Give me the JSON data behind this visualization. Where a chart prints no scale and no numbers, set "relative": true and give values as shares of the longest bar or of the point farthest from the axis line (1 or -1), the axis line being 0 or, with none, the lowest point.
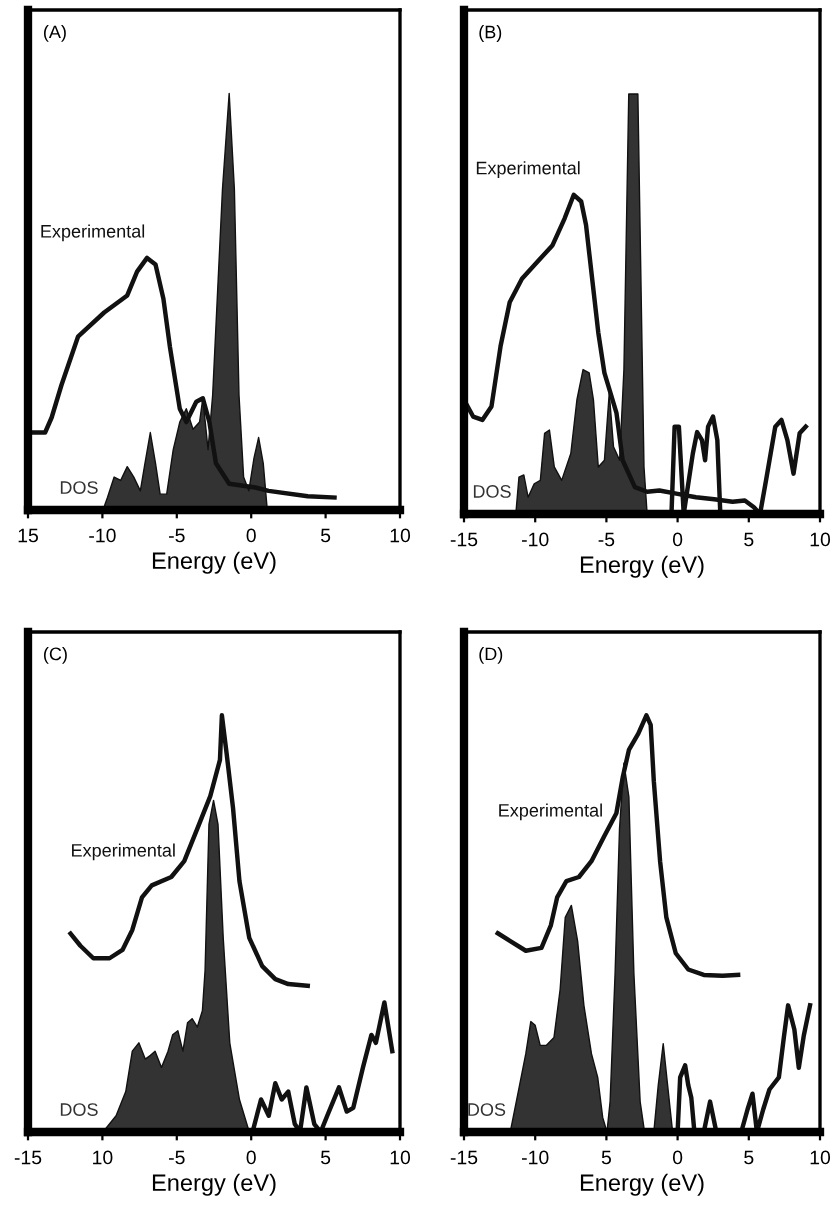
{
  "chart_data": [
    {
      "type": "line",
      "title": "(A)",
      "xlabel": "Energy (eV)",
      "relative": true,
      "tick_labels": "x",
      "xlim": [
        -15,
        10
      ],
      "xticks": [
        {
          "value": -15,
          "label": "15"
        },
        -10,
        -5,
        0,
        5,
        10
      ],
      "series": [
        {
          "name": "Experimental",
          "type": "line",
          "color": "#111111",
          "x": [
            -15,
            -13.85,
            -13.41,
            -12.75,
            -11.64,
            -9.88,
            -8.33,
            -7.67,
            -7.0,
            -6.43,
            -5.9,
            -5.46,
            -4.8,
            -4.36,
            -3.69,
            -3.25,
            -2.81,
            -2.37,
            -1.48,
            0.28,
            1.17,
            3.8,
            5.6
          ],
          "values": [
            0.186,
            0.186,
            0.222,
            0.3,
            0.416,
            0.474,
            0.515,
            0.572,
            0.605,
            0.589,
            0.507,
            0.391,
            0.243,
            0.211,
            0.26,
            0.268,
            0.211,
            0.112,
            0.063,
            0.054,
            0.046,
            0.033,
            0.03
          ]
        },
        {
          "name": "DOS",
          "type": "area",
          "color": "#333333",
          "x": [
            -9.96,
            -9.66,
            -9.21,
            -8.77,
            -8.33,
            -7.89,
            -7.45,
            -7.14,
            -6.78,
            -6.43,
            -6.12,
            -5.68,
            -5.24,
            -4.8,
            -4.36,
            -3.91,
            -3.47,
            -3.25,
            -2.9,
            -2.59,
            -1.93,
            -1.48,
            -1.13,
            -0.82,
            -0.51,
            -0.16,
            0.19,
            0.5,
            0.81,
            1.08
          ],
          "values": [
            0,
            0.03,
            0.079,
            0.071,
            0.104,
            0.079,
            0.046,
            0.112,
            0.186,
            0.112,
            0.038,
            0.038,
            0.145,
            0.211,
            0.243,
            0.194,
            0.211,
            0.268,
            0.145,
            0.276,
            0.77,
            1.0,
            0.77,
            0.276,
            0.079,
            0.046,
            0.125,
            0.174,
            0.112,
            0
          ]
        }
      ]
    },
    {
      "type": "line",
      "title": "(B)",
      "xlabel": "Energy (eV)",
      "relative": true,
      "tick_labels": "x",
      "xlim": [
        -15,
        10
      ],
      "xticks": [
        -15,
        -10,
        -5,
        0,
        5,
        10
      ],
      "series": [
        {
          "name": "Experimental",
          "type": "line",
          "color": "#111111",
          "x": [
            -15,
            -14.36,
            -13.71,
            -13.07,
            -12.43,
            -11.79,
            -10.93,
            -9.86,
            -8.78,
            -7.93,
            -7.29,
            -6.77,
            -6.43,
            -6.0,
            -5.57,
            -5.14,
            -4.71,
            -4.29,
            -3.86,
            -3.0,
            -2.14,
            -1.28,
            0,
            1.29,
            2.57,
            3.86,
            4.72,
            5.36,
            5.79,
            6.21,
            6.86,
            7.29,
            7.71,
            8.14,
            8.57,
            9.0
          ],
          "values": [
            0.272,
            0.232,
            0.224,
            0.256,
            0.4,
            0.504,
            0.56,
            0.6,
            0.64,
            0.704,
            0.76,
            0.744,
            0.688,
            0.56,
            0.432,
            0.336,
            0.288,
            0.24,
            0.128,
            0.064,
            0.053,
            0.056,
            0.048,
            0.04,
            0.035,
            0.029,
            0.032,
            0.016,
            0,
            0.08,
            0.208,
            0.224,
            0.176,
            0.096,
            0.192,
            0.208
          ]
        },
        {
          "name": "DOS",
          "type": "area",
          "color": "#333333",
          "x": [
            -11.36,
            -11.14,
            -10.8,
            -10.5,
            -10.07,
            -9.64,
            -9.34,
            -9.0,
            -8.66,
            -8.14,
            -7.5,
            -7.07,
            -6.64,
            -6.21,
            -5.91,
            -5.57,
            -5.14,
            -4.8,
            -4.5,
            -4.07,
            -3.77,
            -3.43,
            -2.79,
            -2.36,
            -2.14
          ],
          "values": [
            0,
            0.088,
            0.093,
            0.04,
            0.072,
            0.08,
            0.192,
            0.2,
            0.112,
            0.08,
            0.144,
            0.272,
            0.344,
            0.336,
            0.272,
            0.112,
            0.128,
            0.288,
            0.16,
            0.128,
            0.344,
            1.0,
            1.0,
            0.112,
            0
          ]
        },
        {
          "type": "line",
          "color": "#111111",
          "x": [
            -0.43,
            -0.21,
            0.09,
            0.43,
            1.07,
            1.37,
            1.71,
            1.93,
            2.14,
            2.49,
            2.79,
            3.0
          ],
          "values": [
            0,
            0.208,
            0.208,
            0,
            0.144,
            0.195,
            0.176,
            0.128,
            0.208,
            0.232,
            0.176,
            0
          ]
        }
      ]
    },
    {
      "type": "line",
      "title": "(C)",
      "xlabel": "Energy (eV)",
      "relative": true,
      "tick_labels": "x",
      "xlim": [
        -15,
        10
      ],
      "xticks": [
        -15,
        {
          "value": -10,
          "label": "10"
        },
        -5,
        0,
        5,
        10
      ],
      "series": [
        {
          "name": "Experimental",
          "type": "line",
          "color": "#111111",
          "x": [
            -12.14,
            -11.48,
            -10.61,
            -9.52,
            -8.65,
            -7.99,
            -7.34,
            -6.68,
            -5.37,
            -4.5,
            -3.62,
            -2.75,
            -2.1,
            -1.97,
            -1.66,
            -1.22,
            -0.79,
            -0.13,
            0.74,
            1.62,
            2.49,
            3.8
          ],
          "values": [
            0.476,
            0.447,
            0.417,
            0.417,
            0.437,
            0.485,
            0.563,
            0.592,
            0.612,
            0.65,
            0.728,
            0.806,
            0.893,
            1.0,
            0.911,
            0.777,
            0.602,
            0.466,
            0.398,
            0.367,
            0.355,
            0.351
          ]
        },
        {
          "name": "DOS",
          "type": "area",
          "color": "#333333",
          "x": [
            -9.96,
            -9.08,
            -8.43,
            -7.99,
            -7.55,
            -7.12,
            -6.77,
            -6.46,
            -6.03,
            -5.59,
            -5.28,
            -4.93,
            -4.59,
            -4.28,
            -3.97,
            -3.62,
            -3.28,
            -3.1,
            -2.84,
            -2.53,
            -2.23,
            -1.88,
            -1.44,
            -0.79,
            -0.13
          ],
          "values": [
            0,
            0.039,
            0.097,
            0.194,
            0.214,
            0.175,
            0.184,
            0.194,
            0.155,
            0.194,
            0.233,
            0.243,
            0.194,
            0.262,
            0.272,
            0.252,
            0.291,
            0.388,
            0.738,
            0.796,
            0.738,
            0.466,
            0.214,
            0.078,
            0
          ]
        },
        {
          "type": "line",
          "color": "#111111",
          "x": [
            0.09,
            0.66,
            1.18,
            1.62,
            2.05,
            2.49,
            2.93,
            3.28,
            3.71,
            4.24,
            4.67,
            5.11,
            5.9,
            6.42,
            6.86,
            7.51,
            8.08,
            8.38,
            8.95,
            9.48
          ],
          "values": [
            0,
            0.078,
            0.039,
            0.117,
            0.078,
            0.097,
            0.019,
            0,
            0.107,
            0.019,
            0,
            0.039,
            0.107,
            0.049,
            0.058,
            0.155,
            0.233,
            0.214,
            0.311,
            0.194
          ]
        }
      ]
    },
    {
      "type": "line",
      "title": "(D)",
      "xlabel": "Energy (eV)",
      "relative": true,
      "tick_labels": "x",
      "xlim": [
        -15,
        10
      ],
      "xticks": [
        -15,
        -10,
        {
          "value": -5,
          "label": "5"
        },
        0,
        5,
        10
      ],
      "series": [
        {
          "name": "Experimental",
          "type": "line",
          "color": "#111111",
          "x": [
            -12.63,
            -11.75,
            -10.66,
            -9.56,
            -8.9,
            -8.46,
            -7.81,
            -6.93,
            -6.05,
            -5.18,
            -4.3,
            -3.86,
            -3.42,
            -2.76,
            -2.19,
            -1.89,
            -1.67,
            -1.23,
            -0.79,
            -0.13,
            0.75,
            1.84,
            3.16,
            4.25
          ],
          "values": [
            0.477,
            0.458,
            0.435,
            0.442,
            0.496,
            0.563,
            0.602,
            0.612,
            0.65,
            0.708,
            0.765,
            0.85,
            0.917,
            0.956,
            1.0,
            0.977,
            0.842,
            0.65,
            0.515,
            0.429,
            0.39,
            0.377,
            0.375,
            0.377
          ]
        },
        {
          "name": "DOS",
          "type": "area",
          "color": "#333333",
          "x": [
            -11.75,
            -11.1,
            -10.66,
            -10.31,
            -10.0,
            -9.65,
            -9.21,
            -8.68,
            -8.25,
            -7.89,
            -7.46,
            -7.02,
            -6.58,
            -6.05,
            -5.61,
            -5.26,
            -4.96,
            -4.74,
            -4.39,
            -4.08,
            -3.77,
            -3.42,
            -3.07,
            -2.63,
            -2.32,
            -1.67,
            -1.36,
            -1.01,
            -0.7,
            -0.35
          ],
          "values": [
            0,
            0.112,
            0.188,
            0.265,
            0.256,
            0.208,
            0.208,
            0.227,
            0.342,
            0.515,
            0.544,
            0.458,
            0.304,
            0.188,
            0.131,
            0.035,
            0,
            0.073,
            0.381,
            0.727,
            0.885,
            0.804,
            0.381,
            0.073,
            0,
            0,
            0.112,
            0.212,
            0.112,
            0
          ]
        },
        {
          "type": "line",
          "color": "#111111",
          "x": [
            0,
            0.18,
            0.53,
            0.75,
            0.96,
            1.18,
            1.84,
            2.28,
            2.72,
            4.47,
            4.91,
            5.26,
            5.57,
            6.01,
            6.45,
            7.11,
            7.46,
            7.76,
            8.2,
            8.51,
            8.86,
            9.3
          ],
          "values": [
            0,
            0.131,
            0.16,
            0.112,
            0.083,
            0,
            0,
            0.073,
            0,
            0,
            0.054,
            0.092,
            0,
            0.054,
            0.102,
            0.131,
            0.227,
            0.304,
            0.246,
            0.154,
            0.231,
            0.304
          ]
        }
      ]
    }
  ]
}
